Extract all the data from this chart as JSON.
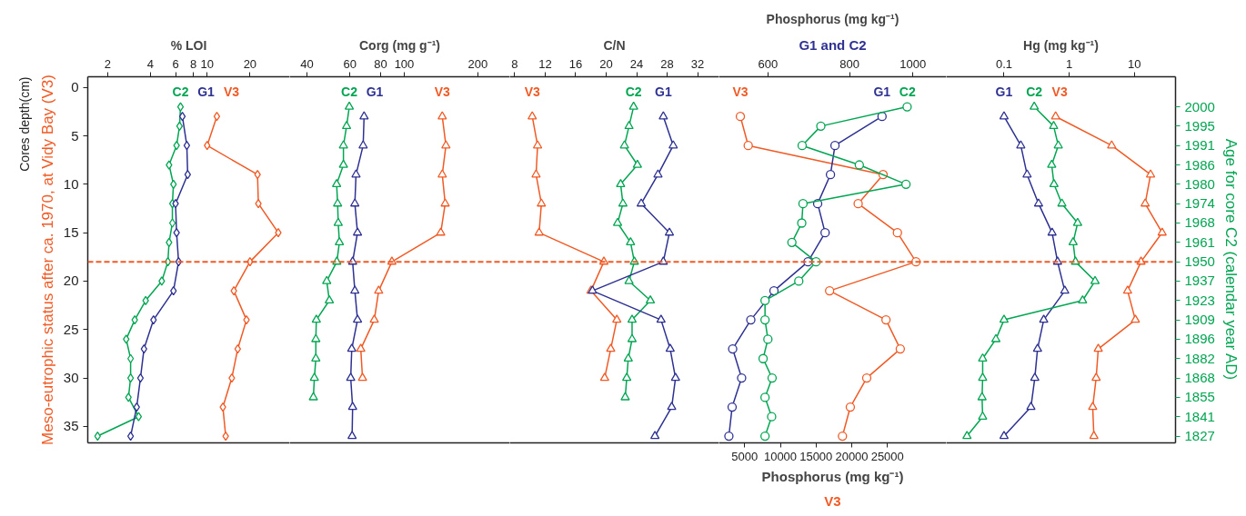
{
  "chart_data": [
    {
      "type": "line",
      "xlabel": "% LOI",
      "ylabel": "Cores depth(cm)",
      "log": "x",
      "marker": "diamond",
      "xlim": [
        1.45,
        38
      ],
      "xticks": [
        2,
        4,
        6,
        8,
        10,
        20
      ],
      "ylim": [
        36.7,
        -1.1
      ],
      "yticks": [
        0,
        5,
        10,
        15,
        20,
        25,
        30,
        35
      ],
      "ref_lines": [
        {
          "axis": "y",
          "value": 18,
          "label": "Meso-eutrophic status after ca. 1970, at Vidy Bay (V3)",
          "color": "#f15a24",
          "line_style": "dashed"
        }
      ],
      "series": [
        {
          "name": "C2",
          "color": "#00a651",
          "x": [
            6.5,
            6.4,
            6.1,
            5.4,
            5.8,
            5.7,
            5.7,
            5.4,
            5.3,
            4.8,
            3.7,
            3.1,
            2.7,
            2.9,
            2.9,
            2.8,
            3.3,
            1.7
          ],
          "values": [
            2,
            4,
            6,
            8,
            10,
            12,
            14,
            16,
            18,
            20,
            22,
            24,
            26,
            28,
            30,
            32,
            34,
            36
          ]
        },
        {
          "name": "G1",
          "color": "#2e3192",
          "x": [
            6.7,
            7.2,
            7.3,
            6.0,
            6.1,
            6.3,
            5.8,
            4.2,
            3.6,
            3.4,
            3.2,
            2.9
          ],
          "values": [
            3,
            6,
            9,
            12,
            15,
            18,
            21,
            24,
            27,
            30,
            33,
            36
          ]
        },
        {
          "name": "V3",
          "color": "#f15a24",
          "x": [
            11.7,
            10.0,
            22.6,
            22.9,
            31.6,
            20.0,
            15.4,
            18.9,
            16.4,
            14.9,
            12.9,
            13.5
          ],
          "values": [
            3,
            6,
            9,
            12,
            15,
            18,
            21,
            24,
            27,
            30,
            33,
            36
          ]
        }
      ]
    },
    {
      "type": "line",
      "xlabel": "Corg (mg g⁻¹)",
      "log": "x",
      "marker": "triangle",
      "xlim": [
        34,
        270
      ],
      "xticks": [
        40,
        60,
        80,
        100,
        200
      ],
      "ylim": [
        36.7,
        -1.1
      ],
      "tick_labels": "x",
      "ref_lines": [
        {
          "axis": "y",
          "value": 18,
          "color": "#f15a24",
          "line_style": "dashed"
        }
      ],
      "series": [
        {
          "name": "C2",
          "color": "#00a651",
          "x": [
            59.6,
            58.1,
            56.4,
            56.4,
            52.9,
            53.4,
            53.7,
            54.3,
            53.0,
            48.2,
            49.4,
            43.7,
            43.5,
            43.5,
            42.9,
            42.5
          ],
          "values": [
            2,
            4,
            6,
            8,
            10,
            12,
            14,
            16,
            18,
            20,
            22,
            24,
            26,
            28,
            30,
            32
          ]
        },
        {
          "name": "G1",
          "color": "#2e3192",
          "x": [
            68.5,
            67.9,
            63.5,
            62.8,
            64.4,
            61.5,
            62.8,
            64.4,
            61.0,
            60.4,
            61.5,
            61.2
          ],
          "values": [
            3,
            6,
            9,
            12,
            15,
            18,
            21,
            24,
            27,
            30,
            33,
            36
          ]
        },
        {
          "name": "V3",
          "color": "#f15a24",
          "x": [
            143,
            148,
            143,
            147,
            141,
            89,
            78.6,
            75.4,
            66.4,
            67.5
          ],
          "values": [
            3,
            6,
            9,
            12,
            15,
            18,
            21,
            24,
            27,
            30
          ]
        }
      ]
    },
    {
      "type": "line",
      "xlabel": "C/N",
      "marker": "triangle",
      "xlim": [
        7.35,
        34.8
      ],
      "xticks": [
        8,
        12,
        16,
        20,
        24,
        28,
        32
      ],
      "ylim": [
        36.7,
        -1.1
      ],
      "tick_labels": "x",
      "ref_lines": [
        {
          "axis": "y",
          "value": 18,
          "color": "#f15a24",
          "line_style": "dashed"
        }
      ],
      "series": [
        {
          "name": "V3",
          "color": "#f15a24",
          "x": [
            10.3,
            11.0,
            10.8,
            11.5,
            11.2,
            19.7,
            18.0,
            21.4,
            20.6,
            19.8
          ],
          "values": [
            3,
            6,
            9,
            12,
            15,
            18,
            21,
            24,
            27,
            30
          ]
        },
        {
          "name": "C2",
          "color": "#00a651",
          "x": [
            23.6,
            23.0,
            22.4,
            24.1,
            21.9,
            22.2,
            21.5,
            23.2,
            23.7,
            23.0,
            25.8,
            23.4,
            23.4,
            22.9,
            22.7,
            22.5
          ],
          "values": [
            2,
            4,
            6,
            8,
            10,
            12,
            14,
            16,
            18,
            20,
            22,
            24,
            26,
            28,
            30,
            32
          ]
        },
        {
          "name": "G1",
          "color": "#2e3192",
          "x": [
            27.5,
            28.8,
            26.8,
            24.6,
            28.3,
            27.5,
            18.2,
            27.2,
            28.4,
            29.1,
            28.6,
            26.4
          ],
          "values": [
            3,
            6,
            9,
            12,
            15,
            18,
            21,
            24,
            27,
            30,
            33,
            36
          ]
        }
      ]
    },
    {
      "type": "line",
      "xlabel": "Phosphorus (mg kg⁻¹)",
      "subtitle": "G1 and C2",
      "x2label": "Phosphorus (mg kg⁻¹)\nV3",
      "log": "x",
      "marker": "circle",
      "xlim": [
        505,
        1125
      ],
      "xticks": [
        600,
        800,
        1000
      ],
      "x2lim": [
        1400,
        33250
      ],
      "x2ticks": [
        5000,
        10000,
        15000,
        20000,
        25000
      ],
      "ylim": [
        36.7,
        -1.1
      ],
      "tick_labels": "x",
      "ref_lines": [
        {
          "axis": "y",
          "value": 18,
          "color": "#f15a24",
          "line_style": "dashed"
        }
      ],
      "series": [
        {
          "name": "V3",
          "color": "#f15a24",
          "axis": "x2",
          "x": [
            4400,
            5500,
            24400,
            20900,
            26400,
            29000,
            16900,
            24800,
            26800,
            22100,
            19800,
            18700
          ],
          "values": [
            3,
            6,
            9,
            12,
            15,
            18,
            21,
            24,
            27,
            30,
            33,
            36
          ]
        },
        {
          "name": "G1",
          "color": "#2e3192",
          "x": [
            897,
            760,
            748,
            715,
            734,
            691,
            613,
            565,
            530,
            547,
            529,
            523
          ],
          "values": [
            3,
            6,
            9,
            12,
            15,
            18,
            21,
            24,
            27,
            30,
            33,
            36
          ]
        },
        {
          "name": "C2",
          "color": "#00a651",
          "x": [
            980,
            723,
            677,
            828,
            976,
            679,
            676,
            653,
            711,
            669,
            594,
            594,
            600,
            590,
            609,
            594,
            608,
            594
          ],
          "values": [
            2,
            4,
            6,
            8,
            10,
            12,
            14,
            16,
            18,
            20,
            22,
            24,
            26,
            28,
            30,
            32,
            34,
            36
          ]
        }
      ]
    },
    {
      "type": "line",
      "xlabel": "Hg (mg kg⁻¹)",
      "y2label": "Age for core C2 (calendar year AD)",
      "log": "x",
      "marker": "triangle",
      "xlim": [
        0.013,
        43
      ],
      "xticks": [
        0.1,
        1,
        10
      ],
      "ylim": [
        36.7,
        -1.1
      ],
      "y2_categories": [
        "2000",
        "1995",
        "1991",
        "1986",
        "1980",
        "1974",
        "1968",
        "1961",
        "1950",
        "1937",
        "1923",
        "1909",
        "1896",
        "1882",
        "1868",
        "1855",
        "1841",
        "1827"
      ],
      "ref_lines": [
        {
          "axis": "y",
          "value": 18,
          "color": "#f15a24",
          "line_style": "dashed"
        }
      ],
      "series": [
        {
          "name": "G1",
          "color": "#2e3192",
          "x": [
            0.1,
            0.181,
            0.226,
            0.339,
            0.547,
            0.664,
            0.857,
            0.407,
            0.327,
            0.297,
            0.259,
            0.1
          ],
          "values": [
            3,
            6,
            9,
            12,
            15,
            18,
            21,
            24,
            27,
            30,
            33,
            36
          ]
        },
        {
          "name": "C2",
          "color": "#00a651",
          "x": [
            0.291,
            0.578,
            0.681,
            0.54,
            0.585,
            0.774,
            1.35,
            1.15,
            1.25,
            2.5,
            1.61,
            0.1,
            0.075,
            0.047,
            0.047,
            0.046,
            0.047,
            0.027
          ],
          "values": [
            2,
            4,
            6,
            8,
            10,
            12,
            14,
            16,
            18,
            20,
            22,
            24,
            26,
            28,
            30,
            32,
            34,
            36
          ]
        },
        {
          "name": "V3",
          "color": "#f15a24",
          "x": [
            0.62,
            4.5,
            17.8,
            14.7,
            26.8,
            12.7,
            7.9,
            10.4,
            2.8,
            2.6,
            2.3,
            2.4
          ],
          "values": [
            3,
            6,
            9,
            12,
            15,
            18,
            21,
            24,
            27,
            30,
            33,
            36
          ]
        }
      ]
    }
  ]
}
